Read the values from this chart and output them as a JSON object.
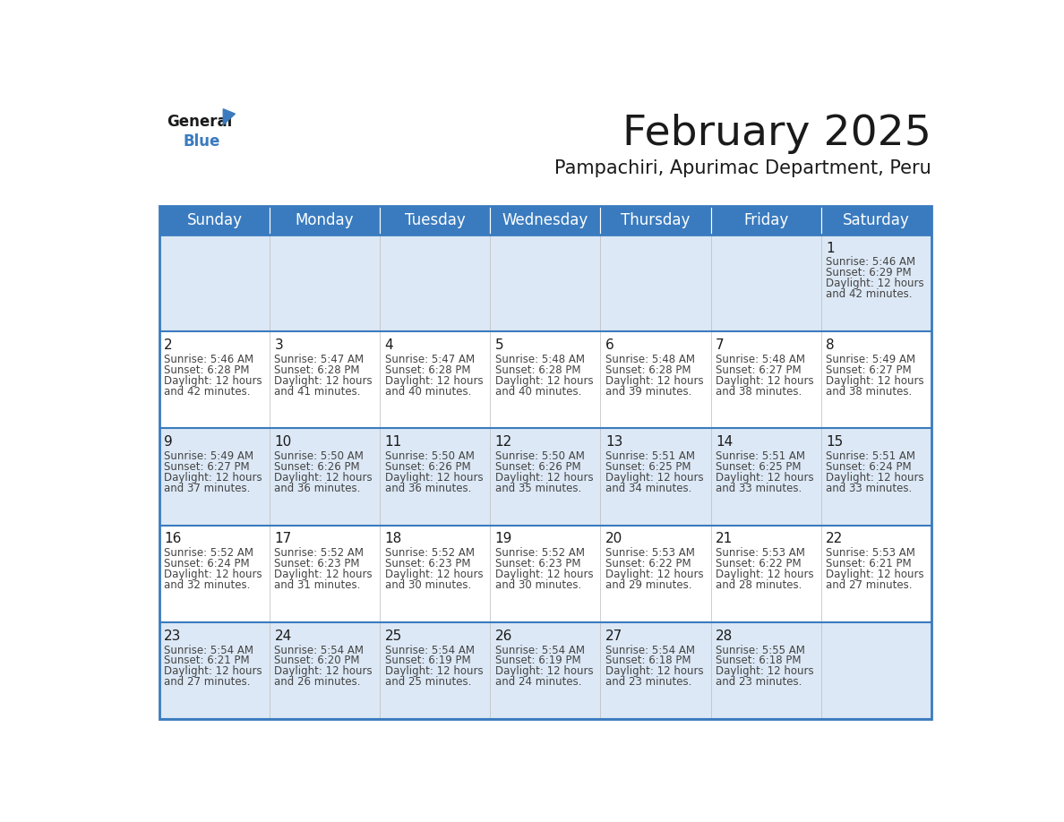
{
  "title": "February 2025",
  "subtitle": "Pampachiri, Apurimac Department, Peru",
  "header_color": "#3a7bbf",
  "header_text_color": "#ffffff",
  "row_bg_even": "#dce8f5",
  "row_bg_odd": "#ffffff",
  "border_color": "#3a7bbf",
  "day_headers": [
    "Sunday",
    "Monday",
    "Tuesday",
    "Wednesday",
    "Thursday",
    "Friday",
    "Saturday"
  ],
  "days": [
    {
      "day": 1,
      "col": 6,
      "row": 0,
      "sunrise": "5:46 AM",
      "sunset": "6:29 PM",
      "daylight_min": "42 minutes."
    },
    {
      "day": 2,
      "col": 0,
      "row": 1,
      "sunrise": "5:46 AM",
      "sunset": "6:28 PM",
      "daylight_min": "42 minutes."
    },
    {
      "day": 3,
      "col": 1,
      "row": 1,
      "sunrise": "5:47 AM",
      "sunset": "6:28 PM",
      "daylight_min": "41 minutes."
    },
    {
      "day": 4,
      "col": 2,
      "row": 1,
      "sunrise": "5:47 AM",
      "sunset": "6:28 PM",
      "daylight_min": "40 minutes."
    },
    {
      "day": 5,
      "col": 3,
      "row": 1,
      "sunrise": "5:48 AM",
      "sunset": "6:28 PM",
      "daylight_min": "40 minutes."
    },
    {
      "day": 6,
      "col": 4,
      "row": 1,
      "sunrise": "5:48 AM",
      "sunset": "6:28 PM",
      "daylight_min": "39 minutes."
    },
    {
      "day": 7,
      "col": 5,
      "row": 1,
      "sunrise": "5:48 AM",
      "sunset": "6:27 PM",
      "daylight_min": "38 minutes."
    },
    {
      "day": 8,
      "col": 6,
      "row": 1,
      "sunrise": "5:49 AM",
      "sunset": "6:27 PM",
      "daylight_min": "38 minutes."
    },
    {
      "day": 9,
      "col": 0,
      "row": 2,
      "sunrise": "5:49 AM",
      "sunset": "6:27 PM",
      "daylight_min": "37 minutes."
    },
    {
      "day": 10,
      "col": 1,
      "row": 2,
      "sunrise": "5:50 AM",
      "sunset": "6:26 PM",
      "daylight_min": "36 minutes."
    },
    {
      "day": 11,
      "col": 2,
      "row": 2,
      "sunrise": "5:50 AM",
      "sunset": "6:26 PM",
      "daylight_min": "36 minutes."
    },
    {
      "day": 12,
      "col": 3,
      "row": 2,
      "sunrise": "5:50 AM",
      "sunset": "6:26 PM",
      "daylight_min": "35 minutes."
    },
    {
      "day": 13,
      "col": 4,
      "row": 2,
      "sunrise": "5:51 AM",
      "sunset": "6:25 PM",
      "daylight_min": "34 minutes."
    },
    {
      "day": 14,
      "col": 5,
      "row": 2,
      "sunrise": "5:51 AM",
      "sunset": "6:25 PM",
      "daylight_min": "33 minutes."
    },
    {
      "day": 15,
      "col": 6,
      "row": 2,
      "sunrise": "5:51 AM",
      "sunset": "6:24 PM",
      "daylight_min": "33 minutes."
    },
    {
      "day": 16,
      "col": 0,
      "row": 3,
      "sunrise": "5:52 AM",
      "sunset": "6:24 PM",
      "daylight_min": "32 minutes."
    },
    {
      "day": 17,
      "col": 1,
      "row": 3,
      "sunrise": "5:52 AM",
      "sunset": "6:23 PM",
      "daylight_min": "31 minutes."
    },
    {
      "day": 18,
      "col": 2,
      "row": 3,
      "sunrise": "5:52 AM",
      "sunset": "6:23 PM",
      "daylight_min": "30 minutes."
    },
    {
      "day": 19,
      "col": 3,
      "row": 3,
      "sunrise": "5:52 AM",
      "sunset": "6:23 PM",
      "daylight_min": "30 minutes."
    },
    {
      "day": 20,
      "col": 4,
      "row": 3,
      "sunrise": "5:53 AM",
      "sunset": "6:22 PM",
      "daylight_min": "29 minutes."
    },
    {
      "day": 21,
      "col": 5,
      "row": 3,
      "sunrise": "5:53 AM",
      "sunset": "6:22 PM",
      "daylight_min": "28 minutes."
    },
    {
      "day": 22,
      "col": 6,
      "row": 3,
      "sunrise": "5:53 AM",
      "sunset": "6:21 PM",
      "daylight_min": "27 minutes."
    },
    {
      "day": 23,
      "col": 0,
      "row": 4,
      "sunrise": "5:54 AM",
      "sunset": "6:21 PM",
      "daylight_min": "27 minutes."
    },
    {
      "day": 24,
      "col": 1,
      "row": 4,
      "sunrise": "5:54 AM",
      "sunset": "6:20 PM",
      "daylight_min": "26 minutes."
    },
    {
      "day": 25,
      "col": 2,
      "row": 4,
      "sunrise": "5:54 AM",
      "sunset": "6:19 PM",
      "daylight_min": "25 minutes."
    },
    {
      "day": 26,
      "col": 3,
      "row": 4,
      "sunrise": "5:54 AM",
      "sunset": "6:19 PM",
      "daylight_min": "24 minutes."
    },
    {
      "day": 27,
      "col": 4,
      "row": 4,
      "sunrise": "5:54 AM",
      "sunset": "6:18 PM",
      "daylight_min": "23 minutes."
    },
    {
      "day": 28,
      "col": 5,
      "row": 4,
      "sunrise": "5:55 AM",
      "sunset": "6:18 PM",
      "daylight_min": "23 minutes."
    }
  ],
  "num_rows": 5,
  "num_cols": 7,
  "title_fontsize": 34,
  "subtitle_fontsize": 15,
  "header_fontsize": 12,
  "day_num_fontsize": 11,
  "cell_text_fontsize": 8.5
}
